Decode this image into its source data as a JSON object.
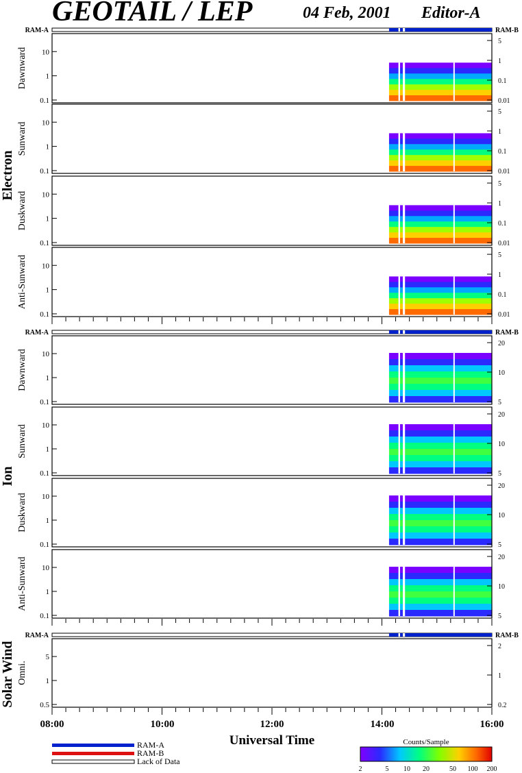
{
  "header": {
    "instrument": "GEOTAIL / LEP",
    "date": "04 Feb, 2001",
    "editor": "Editor-A"
  },
  "ram_labels": {
    "left": "RAM-A",
    "right": "RAM-B"
  },
  "group_labels": {
    "electron": "Electron",
    "ion": "Ion",
    "solar_wind": "Solar Wind"
  },
  "x_axis": {
    "title": "Universal Time",
    "ticks": [
      "08:00",
      "10:00",
      "12:00",
      "14:00",
      "16:00"
    ]
  },
  "legend": {
    "ram_a": "RAM-A",
    "ram_b": "RAM-B",
    "lack_of_data": "Lack of Data",
    "ram_a_color": "#0022cc",
    "ram_b_color": "#dd1111",
    "colorbar_title": "Counts/Sample",
    "colorbar_ticks": [
      "2",
      "5",
      "10",
      "20",
      "50",
      "100",
      "200"
    ]
  },
  "chart_data": {
    "type": "heatmap",
    "x_range_hours": [
      8,
      16
    ],
    "data_start_hour": 14.13,
    "data_gaps_hours": [
      [
        14.3,
        14.33
      ],
      [
        14.38,
        14.42
      ],
      [
        15.3,
        15.32
      ]
    ],
    "panels": [
      {
        "group": "electron",
        "label": "Dawnward",
        "yticks": [
          "10",
          "1",
          "0.1"
        ],
        "rticks": [
          "5",
          "1",
          "0.1",
          "0.01"
        ]
      },
      {
        "group": "electron",
        "label": "Sunward",
        "yticks": [
          "10",
          "1",
          "0.1"
        ],
        "rticks": [
          "5",
          "1",
          "0.1",
          "0.01"
        ]
      },
      {
        "group": "electron",
        "label": "Duskward",
        "yticks": [
          "10",
          "1",
          "0.1"
        ],
        "rticks": [
          "5",
          "1",
          "0.1",
          "0.01"
        ]
      },
      {
        "group": "electron",
        "label": "Anti-Sunward",
        "yticks": [
          "10",
          "1",
          "0.1"
        ],
        "rticks": [
          "5",
          "1",
          "0.1",
          "0.01"
        ]
      },
      {
        "group": "ion",
        "label": "Dawnward",
        "yticks": [
          "10",
          "1",
          "0.1"
        ],
        "rticks": [
          "20",
          "10",
          "5"
        ]
      },
      {
        "group": "ion",
        "label": "Sunward",
        "yticks": [
          "10",
          "1",
          "0.1"
        ],
        "rticks": [
          "20",
          "10",
          "5"
        ]
      },
      {
        "group": "ion",
        "label": "Duskward",
        "yticks": [
          "10",
          "1",
          "0.1"
        ],
        "rticks": [
          "20",
          "10",
          "5"
        ]
      },
      {
        "group": "ion",
        "label": "Anti-Sunward",
        "yticks": [
          "10",
          "1",
          "0.1"
        ],
        "rticks": [
          "20",
          "10",
          "5"
        ]
      },
      {
        "group": "solar_wind",
        "label": "Omni.",
        "yticks": [
          "5",
          "1",
          "0.5"
        ],
        "rticks": [
          "2",
          "1",
          "0.2"
        ]
      }
    ]
  }
}
